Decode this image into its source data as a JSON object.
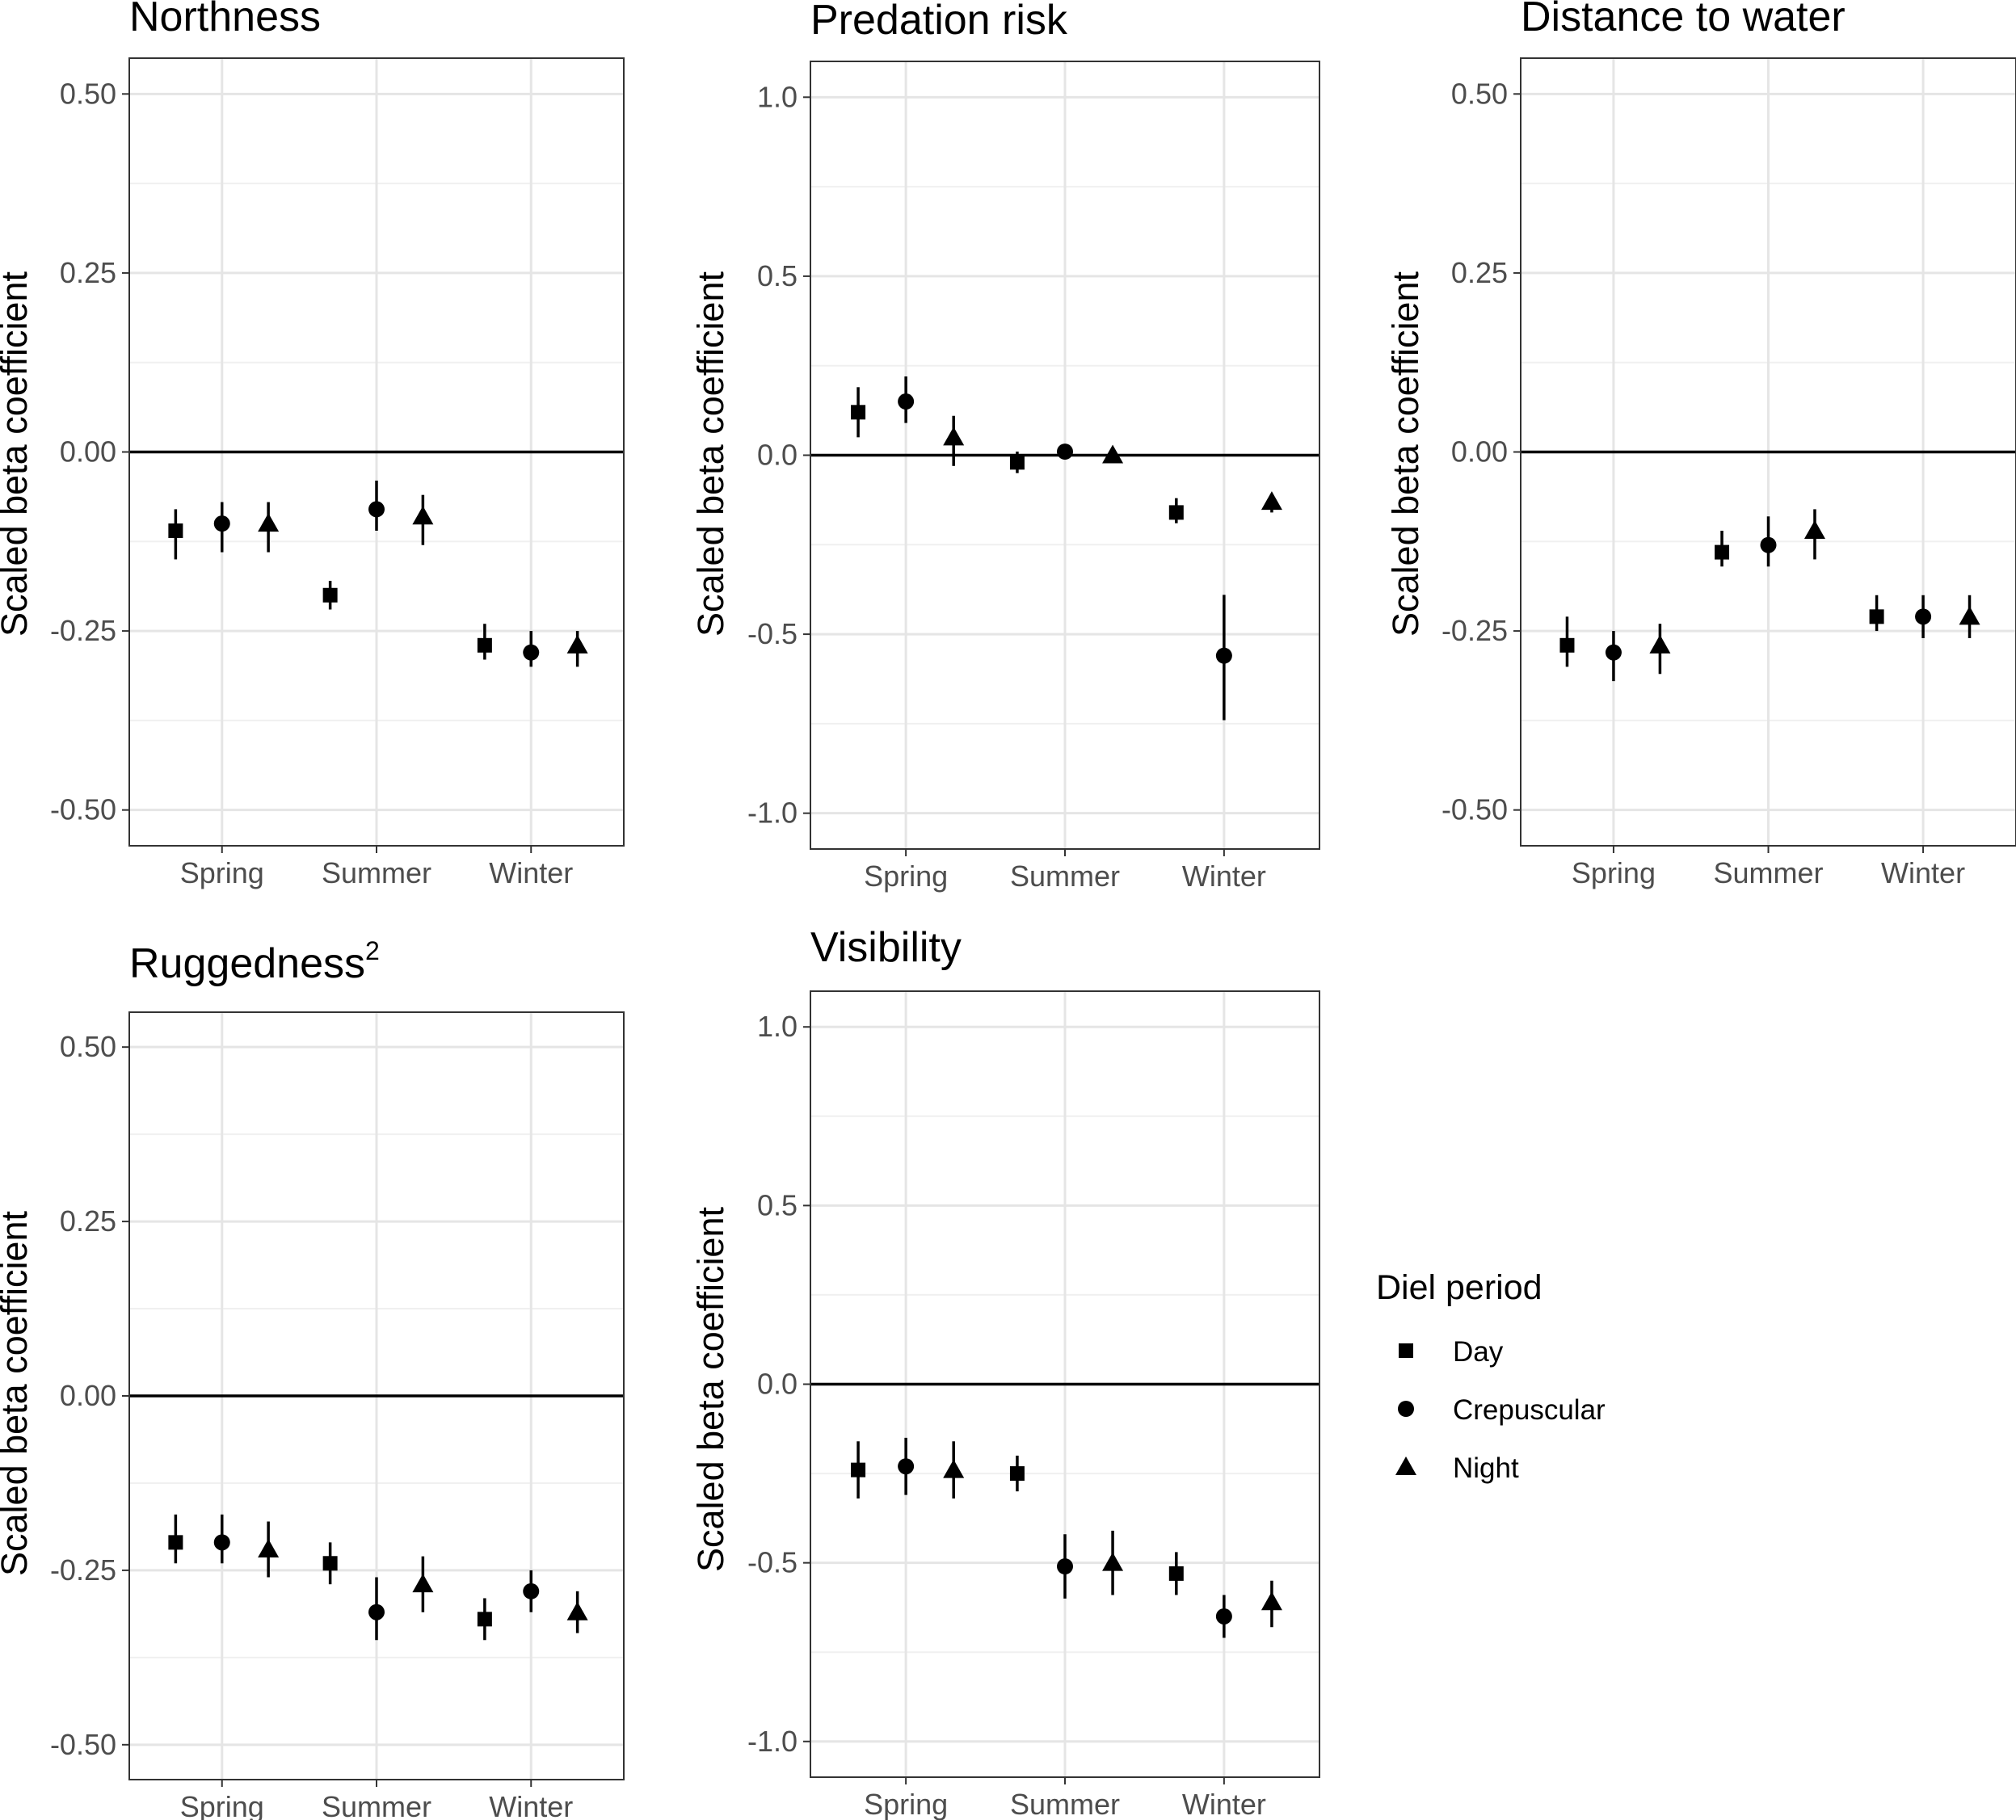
{
  "chart_data": [
    {
      "type": "scatter",
      "title": "Northness",
      "title_superscript": "",
      "ylabel": "Scaled beta coefficient",
      "xlabel": "",
      "categories": [
        "Spring",
        "Summer",
        "Winter"
      ],
      "ylim": [
        -0.55,
        0.55
      ],
      "yticks": [
        -0.5,
        -0.25,
        0.0,
        0.25,
        0.5
      ],
      "ytick_labels": [
        "-0.50",
        "-0.25",
        "0.00",
        "0.25",
        "0.50"
      ],
      "hline": 0,
      "grid": true,
      "series": [
        {
          "name": "Day",
          "values": [
            -0.11,
            -0.2,
            -0.27
          ],
          "lower": [
            -0.15,
            -0.22,
            -0.29
          ],
          "upper": [
            -0.08,
            -0.18,
            -0.24
          ]
        },
        {
          "name": "Crepuscular",
          "values": [
            -0.1,
            -0.08,
            -0.28
          ],
          "lower": [
            -0.14,
            -0.11,
            -0.3
          ],
          "upper": [
            -0.07,
            -0.04,
            -0.25
          ]
        },
        {
          "name": "Night",
          "values": [
            -0.1,
            -0.09,
            -0.27
          ],
          "lower": [
            -0.14,
            -0.13,
            -0.3
          ],
          "upper": [
            -0.07,
            -0.06,
            -0.25
          ]
        }
      ]
    },
    {
      "type": "scatter",
      "title": "Predation risk",
      "title_superscript": "",
      "ylabel": "Scaled beta coefficient",
      "xlabel": "",
      "categories": [
        "Spring",
        "Summer",
        "Winter"
      ],
      "ylim": [
        -1.1,
        1.1
      ],
      "yticks": [
        -1.0,
        -0.5,
        0.0,
        0.5,
        1.0
      ],
      "ytick_labels": [
        "-1.0",
        "-0.5",
        "0.0",
        "0.5",
        "1.0"
      ],
      "hline": 0,
      "grid": true,
      "series": [
        {
          "name": "Day",
          "values": [
            0.12,
            -0.02,
            -0.16
          ],
          "lower": [
            0.05,
            -0.05,
            -0.19
          ],
          "upper": [
            0.19,
            0.01,
            -0.12
          ]
        },
        {
          "name": "Crepuscular",
          "values": [
            0.15,
            0.01,
            -0.56
          ],
          "lower": [
            0.09,
            0.0,
            -0.74
          ],
          "upper": [
            0.22,
            0.02,
            -0.39
          ]
        },
        {
          "name": "Night",
          "values": [
            0.05,
            0.0,
            -0.13
          ],
          "lower": [
            -0.03,
            -0.01,
            -0.16
          ],
          "upper": [
            0.11,
            0.01,
            -0.11
          ]
        }
      ]
    },
    {
      "type": "scatter",
      "title": "Distance to water",
      "title_superscript": "",
      "ylabel": "Scaled beta coefficient",
      "xlabel": "",
      "categories": [
        "Spring",
        "Summer",
        "Winter"
      ],
      "ylim": [
        -0.55,
        0.55
      ],
      "yticks": [
        -0.5,
        -0.25,
        0.0,
        0.25,
        0.5
      ],
      "ytick_labels": [
        "-0.50",
        "-0.25",
        "0.00",
        "0.25",
        "0.50"
      ],
      "hline": 0,
      "grid": true,
      "series": [
        {
          "name": "Day",
          "values": [
            -0.27,
            -0.14,
            -0.23
          ],
          "lower": [
            -0.3,
            -0.16,
            -0.25
          ],
          "upper": [
            -0.23,
            -0.11,
            -0.2
          ]
        },
        {
          "name": "Crepuscular",
          "values": [
            -0.28,
            -0.13,
            -0.23
          ],
          "lower": [
            -0.32,
            -0.16,
            -0.26
          ],
          "upper": [
            -0.25,
            -0.09,
            -0.2
          ]
        },
        {
          "name": "Night",
          "values": [
            -0.27,
            -0.11,
            -0.23
          ],
          "lower": [
            -0.31,
            -0.15,
            -0.26
          ],
          "upper": [
            -0.24,
            -0.08,
            -0.2
          ]
        }
      ]
    },
    {
      "type": "scatter",
      "title": "Ruggedness",
      "title_superscript": "2",
      "ylabel": "Scaled beta coefficient",
      "xlabel": "",
      "categories": [
        "Spring",
        "Summer",
        "Winter"
      ],
      "ylim": [
        -0.55,
        0.55
      ],
      "yticks": [
        -0.5,
        -0.25,
        0.0,
        0.25,
        0.5
      ],
      "ytick_labels": [
        "-0.50",
        "-0.25",
        "0.00",
        "0.25",
        "0.50"
      ],
      "hline": 0,
      "grid": true,
      "series": [
        {
          "name": "Day",
          "values": [
            -0.21,
            -0.24,
            -0.32
          ],
          "lower": [
            -0.24,
            -0.27,
            -0.35
          ],
          "upper": [
            -0.17,
            -0.21,
            -0.29
          ]
        },
        {
          "name": "Crepuscular",
          "values": [
            -0.21,
            -0.31,
            -0.28
          ],
          "lower": [
            -0.24,
            -0.35,
            -0.31
          ],
          "upper": [
            -0.17,
            -0.26,
            -0.25
          ]
        },
        {
          "name": "Night",
          "values": [
            -0.22,
            -0.27,
            -0.31
          ],
          "lower": [
            -0.26,
            -0.31,
            -0.34
          ],
          "upper": [
            -0.18,
            -0.23,
            -0.28
          ]
        }
      ]
    },
    {
      "type": "scatter",
      "title": "Visibility",
      "title_superscript": "",
      "ylabel": "Scaled beta coefficient",
      "xlabel": "",
      "categories": [
        "Spring",
        "Summer",
        "Winter"
      ],
      "ylim": [
        -1.1,
        1.1
      ],
      "yticks": [
        -1.0,
        -0.5,
        0.0,
        0.5,
        1.0
      ],
      "ytick_labels": [
        "-1.0",
        "-0.5",
        "0.0",
        "0.5",
        "1.0"
      ],
      "hline": 0,
      "grid": true,
      "series": [
        {
          "name": "Day",
          "values": [
            -0.24,
            -0.25,
            -0.53
          ],
          "lower": [
            -0.32,
            -0.3,
            -0.59
          ],
          "upper": [
            -0.16,
            -0.2,
            -0.47
          ]
        },
        {
          "name": "Crepuscular",
          "values": [
            -0.23,
            -0.51,
            -0.65
          ],
          "lower": [
            -0.31,
            -0.6,
            -0.71
          ],
          "upper": [
            -0.15,
            -0.42,
            -0.59
          ]
        },
        {
          "name": "Night",
          "values": [
            -0.24,
            -0.5,
            -0.61
          ],
          "lower": [
            -0.32,
            -0.59,
            -0.68
          ],
          "upper": [
            -0.16,
            -0.41,
            -0.55
          ]
        }
      ]
    }
  ],
  "legend": {
    "title": "Diel period",
    "items": [
      {
        "label": "Day",
        "shape": "square"
      },
      {
        "label": "Crepuscular",
        "shape": "circle"
      },
      {
        "label": "Night",
        "shape": "triangle"
      }
    ]
  }
}
